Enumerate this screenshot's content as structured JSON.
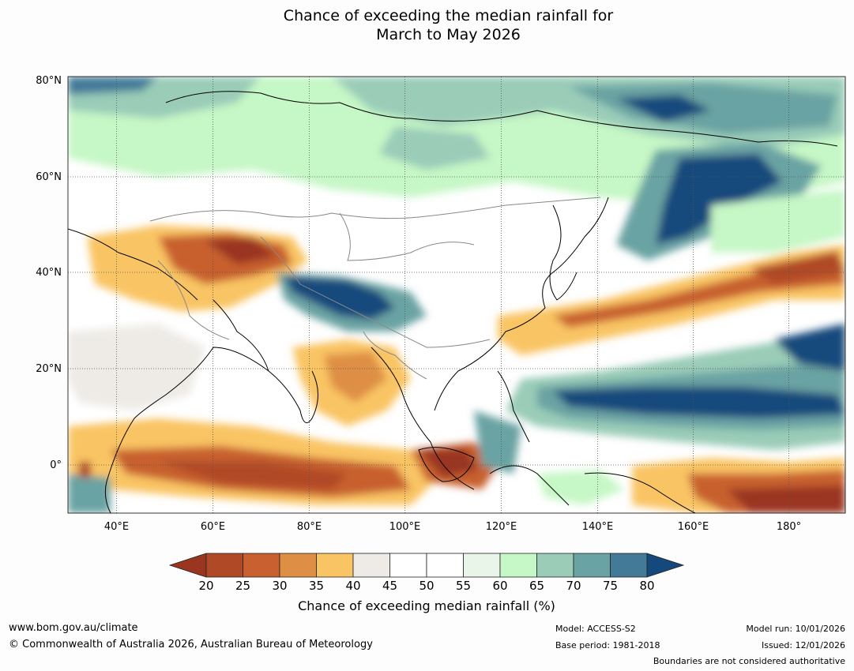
{
  "title": {
    "line1": "Chance of exceeding the median rainfall for",
    "line2": "March to May 2026"
  },
  "map": {
    "lat_labels": [
      "80°N",
      "60°N",
      "40°N",
      "20°N",
      "0°"
    ],
    "lon_labels": [
      "40°E",
      "60°E",
      "80°E",
      "100°E",
      "120°E",
      "140°E",
      "160°E",
      "180°"
    ],
    "lon_values": [
      40,
      60,
      80,
      100,
      120,
      140,
      160,
      180
    ],
    "lat_values": [
      80,
      60,
      40,
      20,
      0
    ]
  },
  "colorbar": {
    "ticks": [
      "20",
      "25",
      "30",
      "35",
      "40",
      "45",
      "50",
      "55",
      "60",
      "65",
      "70",
      "75",
      "80"
    ],
    "colors": [
      "#9a3520",
      "#b04a26",
      "#c8612f",
      "#de8f45",
      "#f9c463",
      "#eeebe6",
      "#ffffff",
      "#ffffff",
      "#e8f5e8",
      "#c6f7c6",
      "#9accb8",
      "#6aa3a3",
      "#437a98",
      "#15487b"
    ],
    "label": "Chance of exceeding median rainfall (%)"
  },
  "footer": {
    "url": "www.bom.gov.au/climate",
    "copyright": "© Commonwealth of Australia 2026, Australian Bureau of Meteorology",
    "model": "Model: ACCESS-S2",
    "base_period": "Base period: 1981-2018",
    "model_run": "Model run: 10/01/2026",
    "issued": "Issued: 12/01/2026",
    "disclaimer": "Boundaries are not considered authoritative"
  }
}
